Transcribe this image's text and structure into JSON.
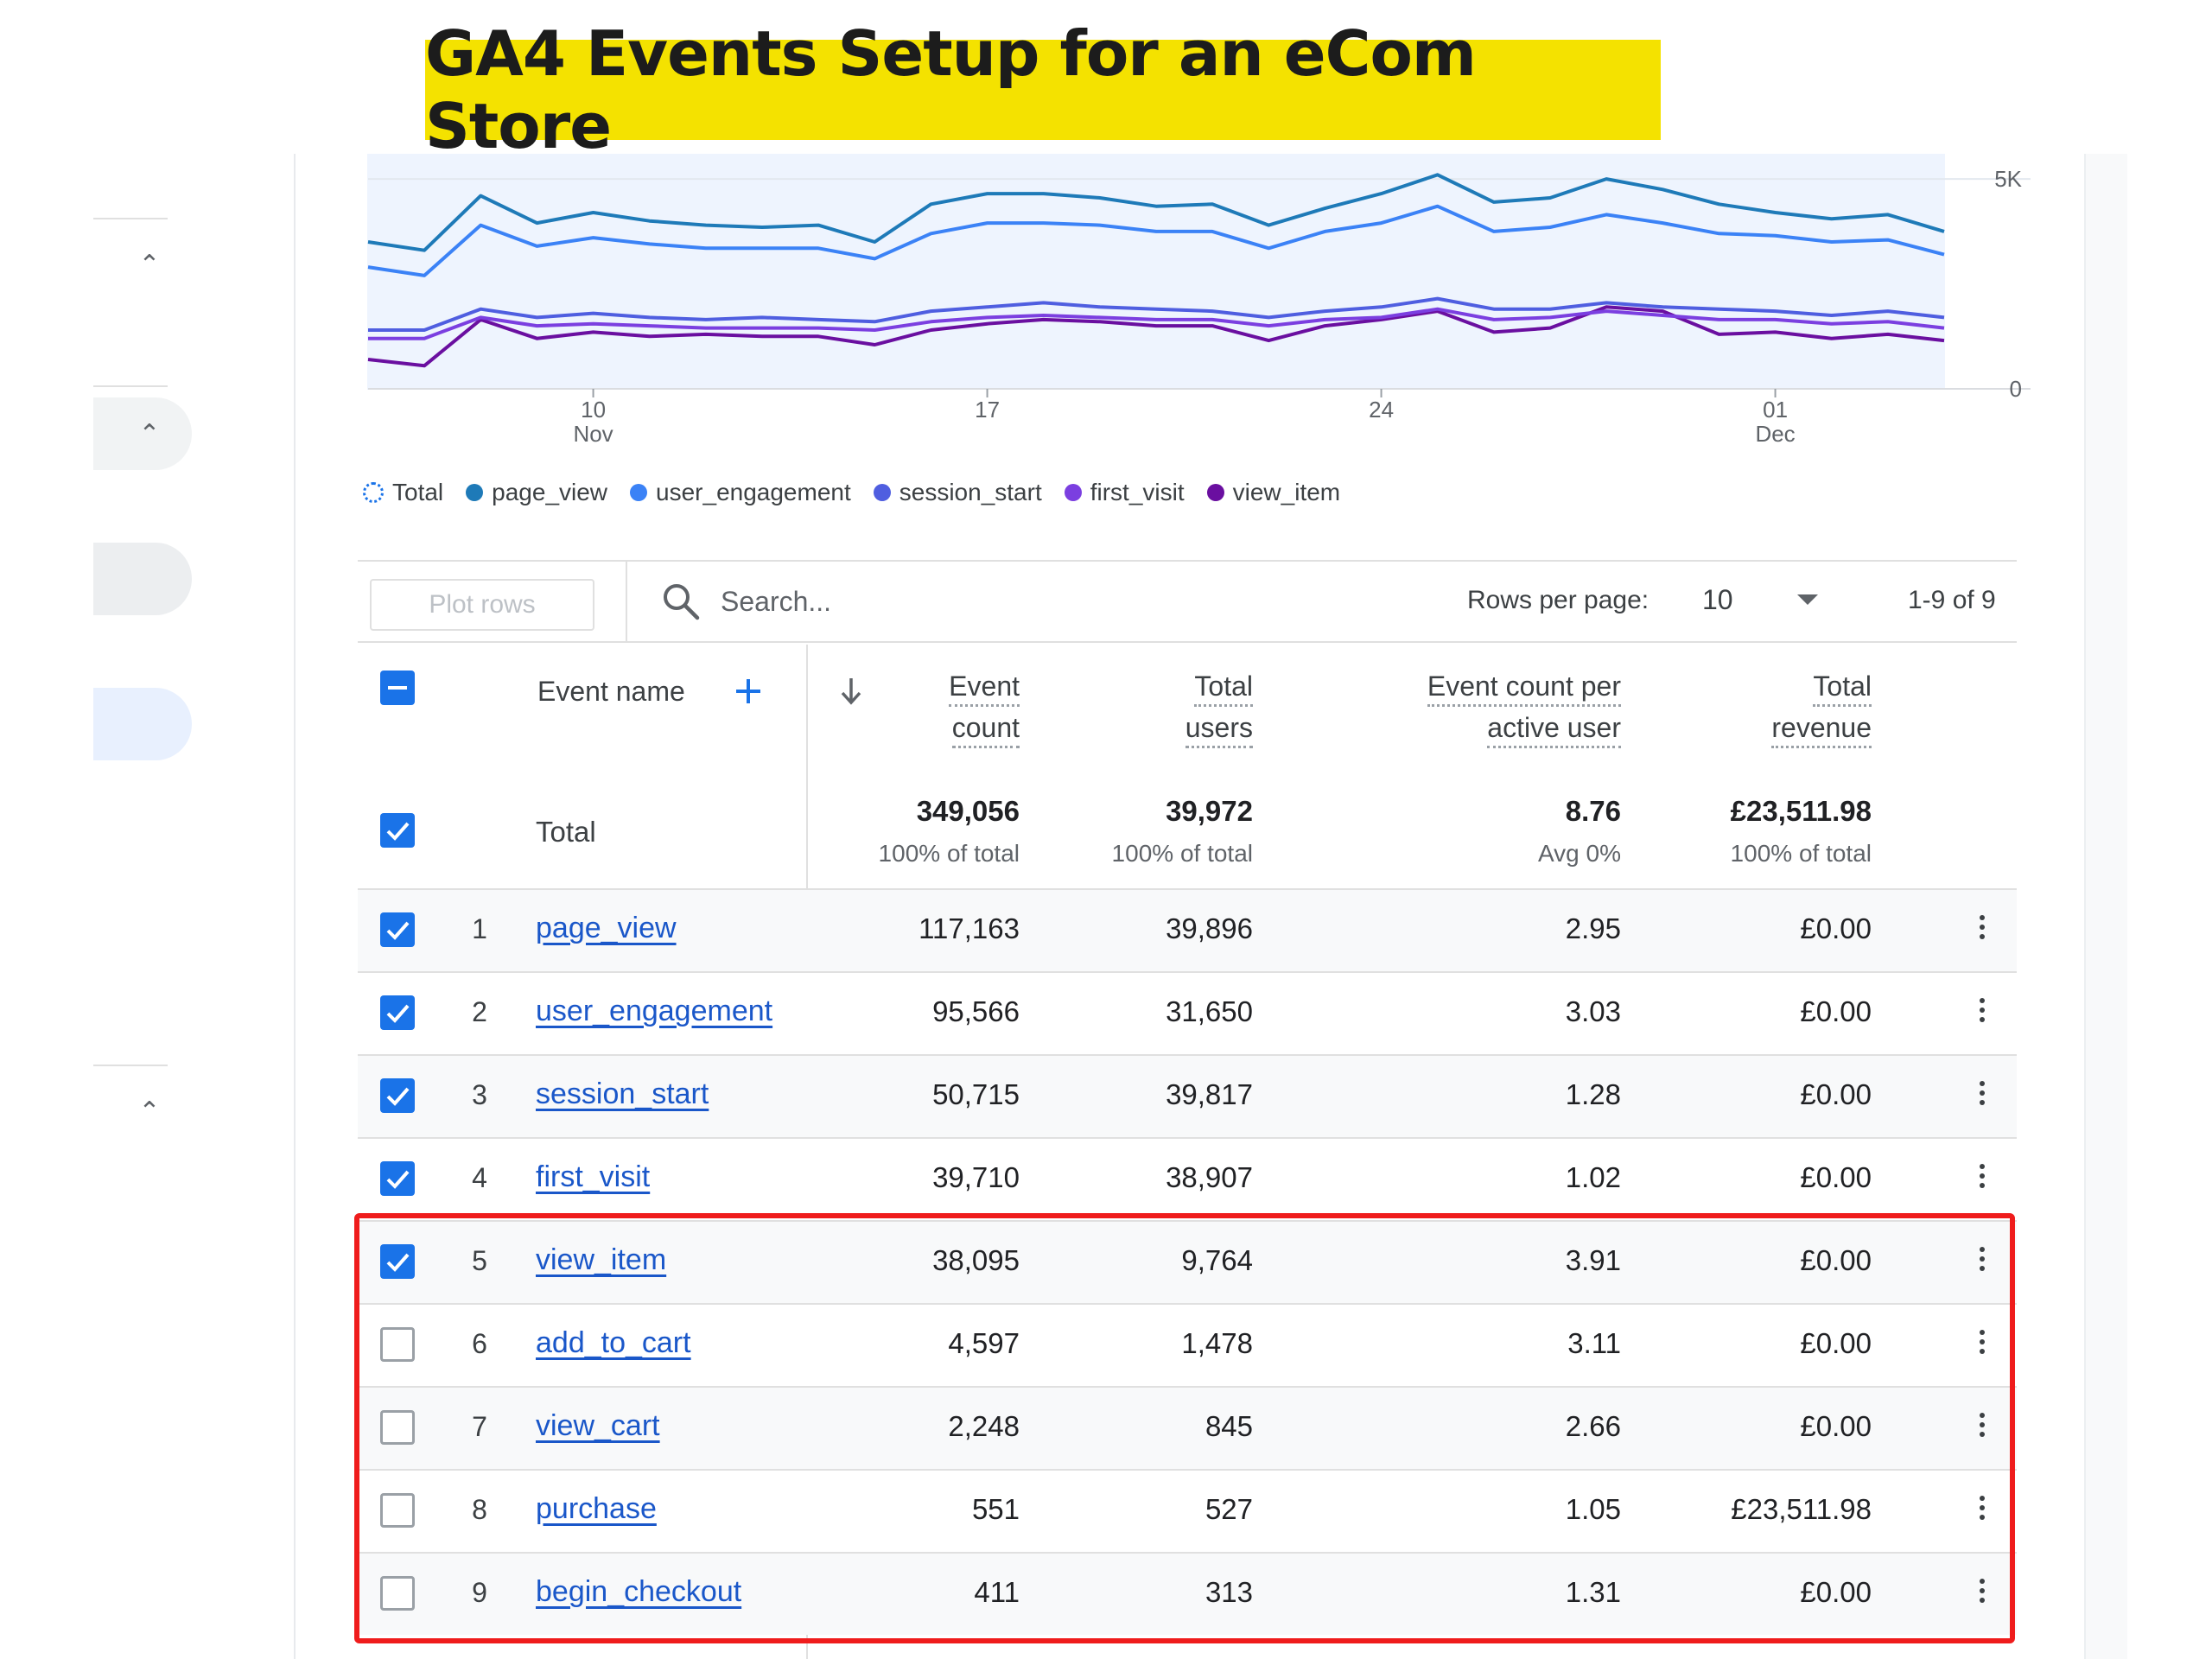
{
  "banner": {
    "title": "GA4 Events Setup for an eCom Store"
  },
  "chart_data": {
    "type": "line",
    "x": [
      "06 Nov",
      "07 Nov",
      "08 Nov",
      "09 Nov",
      "10 Nov",
      "11 Nov",
      "12 Nov",
      "13 Nov",
      "14 Nov",
      "15 Nov",
      "16 Nov",
      "17 Nov",
      "18 Nov",
      "19 Nov",
      "20 Nov",
      "21 Nov",
      "22 Nov",
      "23 Nov",
      "24 Nov",
      "25 Nov",
      "26 Nov",
      "27 Nov",
      "28 Nov",
      "29 Nov",
      "30 Nov",
      "01 Dec",
      "02 Dec",
      "03 Dec",
      "04 Dec"
    ],
    "x_tick_labels": [
      {
        "day": "10",
        "month": "Nov",
        "at": "10 Nov"
      },
      {
        "day": "17",
        "month": "",
        "at": "17 Nov"
      },
      {
        "day": "24",
        "month": "",
        "at": "24 Nov"
      },
      {
        "day": "01",
        "month": "Dec",
        "at": "01 Dec"
      }
    ],
    "y_ticks": [
      {
        "value": 5000,
        "label": "5K"
      },
      {
        "value": 0,
        "label": "0"
      }
    ],
    "ylim": [
      0,
      5600
    ],
    "grid": true,
    "legend_position": "bottom-left",
    "series": [
      {
        "name": "page_view",
        "color": "#1e7ab8",
        "values": [
          3500,
          3300,
          4600,
          3950,
          4200,
          4000,
          3900,
          3850,
          3900,
          3500,
          4400,
          4650,
          4650,
          4550,
          4350,
          4400,
          3900,
          4300,
          4650,
          5100,
          4450,
          4550,
          5000,
          4750,
          4400,
          4200,
          4050,
          4150,
          3750
        ]
      },
      {
        "name": "user_engagement",
        "color": "#3b82f6",
        "values": [
          2900,
          2700,
          3900,
          3400,
          3600,
          3450,
          3350,
          3350,
          3350,
          3100,
          3700,
          3950,
          3950,
          3900,
          3750,
          3750,
          3350,
          3750,
          3950,
          4350,
          3750,
          3850,
          4150,
          3950,
          3700,
          3650,
          3500,
          3550,
          3200
        ]
      },
      {
        "name": "session_start",
        "color": "#4f5ee0",
        "values": [
          1400,
          1400,
          1900,
          1700,
          1800,
          1700,
          1650,
          1700,
          1650,
          1600,
          1850,
          1950,
          2050,
          1950,
          1900,
          1850,
          1700,
          1850,
          1950,
          2150,
          1900,
          1900,
          2050,
          1950,
          1900,
          1850,
          1750,
          1850,
          1700
        ]
      },
      {
        "name": "first_visit",
        "color": "#7b3fe0",
        "values": [
          1200,
          1200,
          1700,
          1500,
          1550,
          1500,
          1450,
          1450,
          1450,
          1400,
          1600,
          1700,
          1750,
          1700,
          1650,
          1650,
          1500,
          1650,
          1700,
          1900,
          1650,
          1700,
          1850,
          1750,
          1650,
          1650,
          1550,
          1600,
          1450
        ]
      },
      {
        "name": "view_item",
        "color": "#6a0fa0",
        "values": [
          700,
          550,
          1650,
          1200,
          1350,
          1250,
          1300,
          1250,
          1250,
          1050,
          1400,
          1550,
          1650,
          1600,
          1500,
          1500,
          1150,
          1500,
          1650,
          1850,
          1350,
          1450,
          1950,
          1850,
          1300,
          1350,
          1200,
          1300,
          1150
        ]
      }
    ],
    "legend": [
      {
        "name": "Total",
        "style": "dotted-ring"
      },
      {
        "name": "page_view",
        "color": "#1e7ab8"
      },
      {
        "name": "user_engagement",
        "color": "#3b82f6"
      },
      {
        "name": "session_start",
        "color": "#4f5ee0"
      },
      {
        "name": "first_visit",
        "color": "#7b3fe0"
      },
      {
        "name": "view_item",
        "color": "#6a0fa0"
      }
    ]
  },
  "toolbar": {
    "plot_rows_label": "Plot rows",
    "search_placeholder": "Search...",
    "rows_per_page_label": "Rows per page:",
    "rows_per_page_value": "10",
    "pagination": "1-9 of 9"
  },
  "table": {
    "headers": {
      "event_name": "Event name",
      "event_count": [
        "Event",
        "count"
      ],
      "total_users": [
        "Total",
        "users"
      ],
      "per_user": [
        "Event count per",
        "active user"
      ],
      "revenue": [
        "Total",
        "revenue"
      ]
    },
    "totals": {
      "label": "Total",
      "event_count": "349,056",
      "event_count_sub": "100% of total",
      "total_users": "39,972",
      "total_users_sub": "100% of total",
      "per_user": "8.76",
      "per_user_sub": "Avg 0%",
      "revenue": "£23,511.98",
      "revenue_sub": "100% of total"
    },
    "rows": [
      {
        "num": "1",
        "name": "page_view",
        "checked": true,
        "event_count": "117,163",
        "total_users": "39,896",
        "per_user": "2.95",
        "revenue": "£0.00"
      },
      {
        "num": "2",
        "name": "user_engagement",
        "checked": true,
        "event_count": "95,566",
        "total_users": "31,650",
        "per_user": "3.03",
        "revenue": "£0.00"
      },
      {
        "num": "3",
        "name": "session_start",
        "checked": true,
        "event_count": "50,715",
        "total_users": "39,817",
        "per_user": "1.28",
        "revenue": "£0.00"
      },
      {
        "num": "4",
        "name": "first_visit",
        "checked": true,
        "event_count": "39,710",
        "total_users": "38,907",
        "per_user": "1.02",
        "revenue": "£0.00"
      },
      {
        "num": "5",
        "name": "view_item",
        "checked": true,
        "event_count": "38,095",
        "total_users": "9,764",
        "per_user": "3.91",
        "revenue": "£0.00"
      },
      {
        "num": "6",
        "name": "add_to_cart",
        "checked": false,
        "event_count": "4,597",
        "total_users": "1,478",
        "per_user": "3.11",
        "revenue": "£0.00"
      },
      {
        "num": "7",
        "name": "view_cart",
        "checked": false,
        "event_count": "2,248",
        "total_users": "845",
        "per_user": "2.66",
        "revenue": "£0.00"
      },
      {
        "num": "8",
        "name": "purchase",
        "checked": false,
        "event_count": "551",
        "total_users": "527",
        "per_user": "1.05",
        "revenue": "£23,511.98"
      },
      {
        "num": "9",
        "name": "begin_checkout",
        "checked": false,
        "event_count": "411",
        "total_users": "313",
        "per_user": "1.31",
        "revenue": "£0.00"
      }
    ]
  },
  "colors": {
    "accent": "#1a73e8",
    "link": "#1a57c9",
    "highlight": "#ef1c1c",
    "banner": "#f4e200"
  }
}
